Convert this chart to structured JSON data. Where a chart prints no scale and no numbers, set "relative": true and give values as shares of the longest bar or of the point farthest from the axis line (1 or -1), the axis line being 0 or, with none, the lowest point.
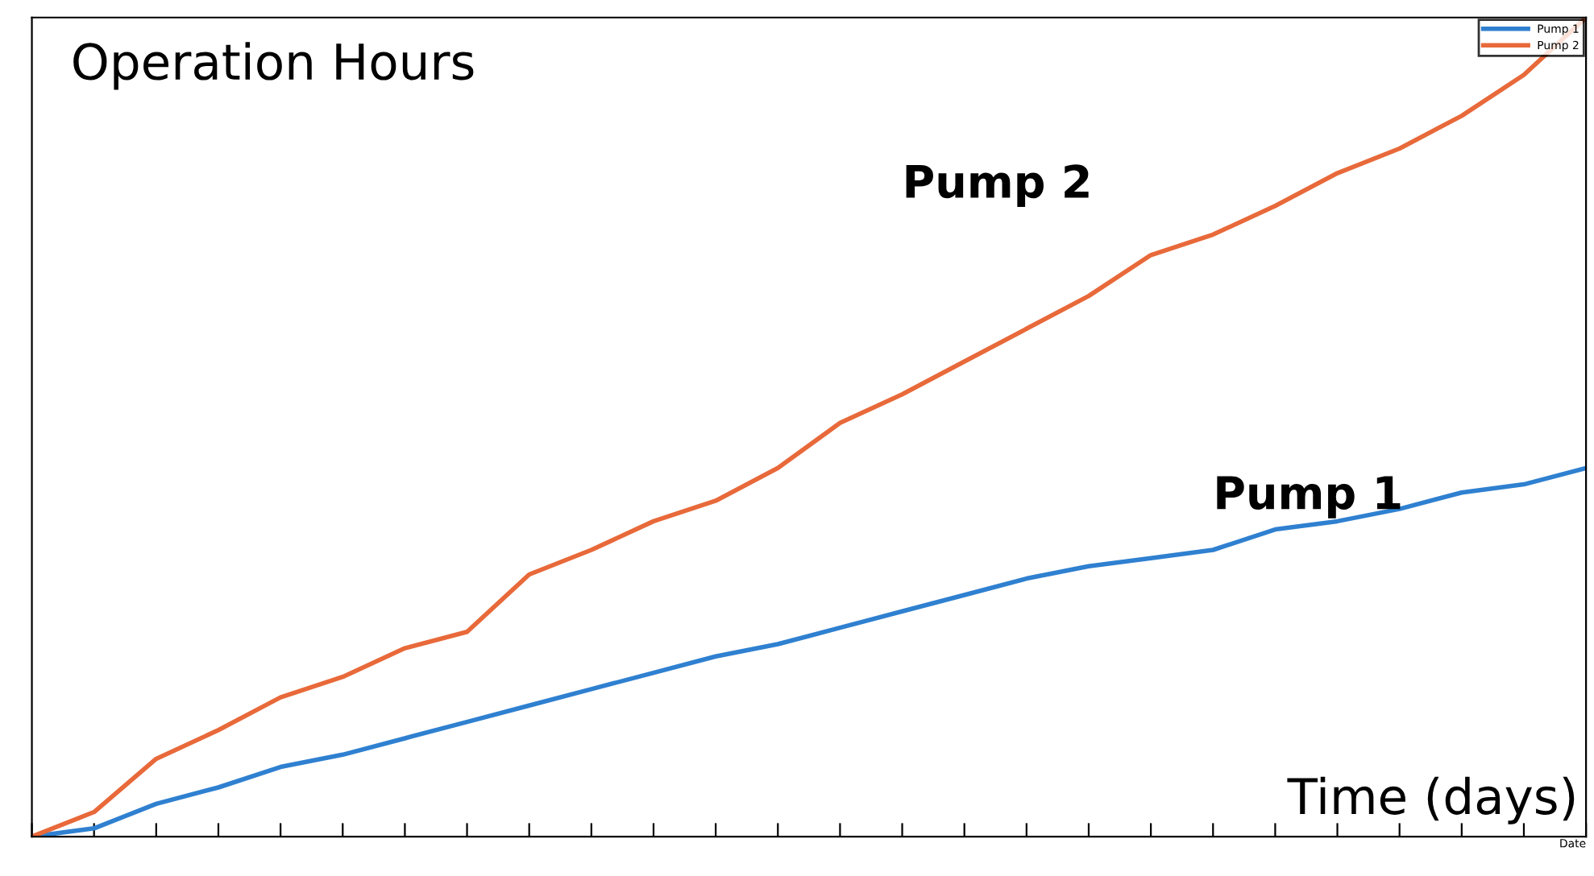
{
  "chart_data": {
    "type": "line",
    "relative": true,
    "xlabel": "Date",
    "categories": [
      null,
      null,
      null,
      null,
      null,
      null,
      null,
      null,
      null,
      null,
      null,
      null,
      null,
      null,
      null,
      null,
      null,
      null,
      null,
      null,
      null,
      null,
      null,
      null,
      null,
      null
    ],
    "tick_labels": false,
    "legend": "top right",
    "grid": false,
    "annotations": [
      "Operation Hours",
      "Time (days)"
    ],
    "series": [
      {
        "name": "Pump 1",
        "color": "#2f80d0",
        "values": [
          0,
          0.01,
          0.04,
          0.06,
          0.085,
          0.1,
          0.12,
          0.14,
          0.16,
          0.18,
          0.2,
          0.22,
          0.235,
          0.255,
          0.275,
          0.295,
          0.315,
          0.33,
          0.34,
          0.35,
          0.375,
          0.385,
          0.4,
          0.42,
          0.43,
          0.45
        ]
      },
      {
        "name": "Pump 2",
        "color": "#e8693a",
        "values": [
          0,
          0.03,
          0.095,
          0.13,
          0.17,
          0.195,
          0.23,
          0.25,
          0.32,
          0.35,
          0.385,
          0.41,
          0.45,
          0.505,
          0.54,
          0.58,
          0.62,
          0.66,
          0.71,
          0.735,
          0.77,
          0.81,
          0.84,
          0.88,
          0.93,
          1.0
        ]
      }
    ]
  }
}
